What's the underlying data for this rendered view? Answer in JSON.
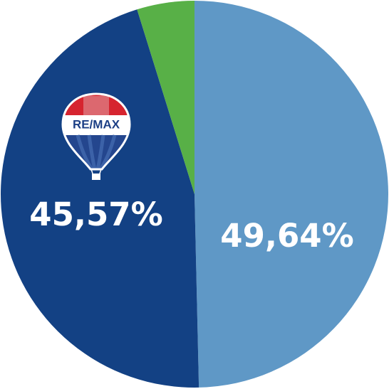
{
  "chart_data": {
    "type": "pie",
    "values": [
      49.64,
      45.57,
      4.79
    ],
    "value_labels": [
      "49,64%",
      "45,57%",
      null
    ],
    "colors": [
      "#5f98c6",
      "#134184",
      "#58b047"
    ],
    "logo_text": "RE/MAX"
  }
}
